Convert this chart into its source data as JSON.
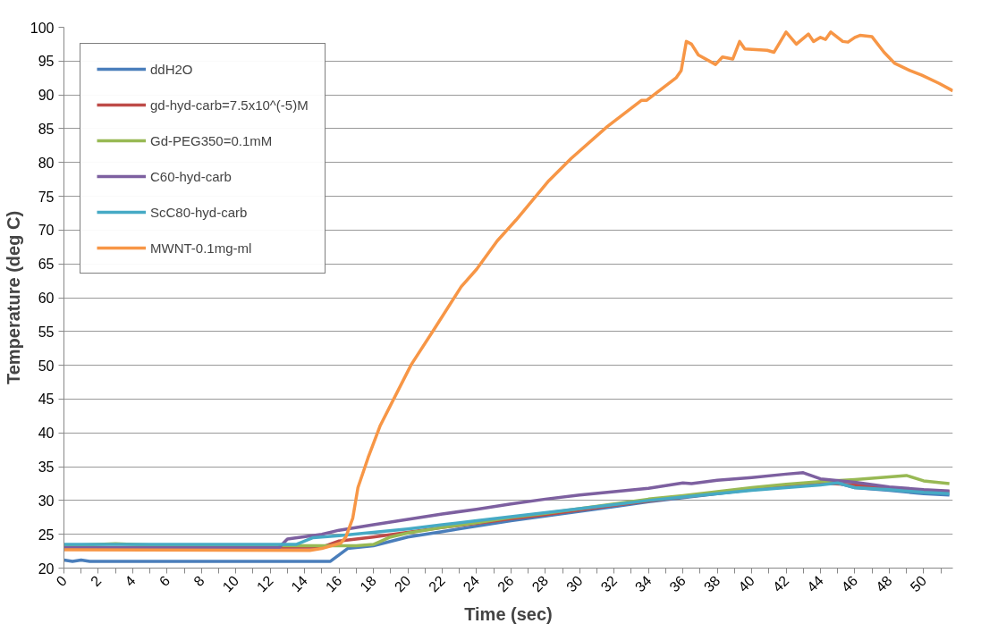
{
  "chart_data": {
    "type": "line",
    "xlabel": "Time (sec)",
    "ylabel": "Temperature (deg C)",
    "xlim": [
      0,
      51.7
    ],
    "ylim": [
      20,
      100
    ],
    "xticks": [
      0,
      {
        "value": 1,
        "label": null
      },
      2,
      {
        "value": 3,
        "label": null
      },
      4,
      {
        "value": 5,
        "label": null
      },
      6,
      {
        "value": 7,
        "label": null
      },
      8,
      {
        "value": 9,
        "label": null
      },
      10,
      {
        "value": 11,
        "label": null
      },
      12,
      {
        "value": 13,
        "label": null
      },
      14,
      {
        "value": 15,
        "label": null
      },
      16,
      {
        "value": 17,
        "label": null
      },
      18,
      {
        "value": 19,
        "label": null
      },
      20,
      {
        "value": 21,
        "label": null
      },
      22,
      {
        "value": 23,
        "label": null
      },
      24,
      {
        "value": 25,
        "label": null
      },
      26,
      {
        "value": 27,
        "label": null
      },
      28,
      {
        "value": 29,
        "label": null
      },
      30,
      {
        "value": 31,
        "label": null
      },
      32,
      {
        "value": 33,
        "label": null
      },
      34,
      {
        "value": 35,
        "label": null
      },
      36,
      {
        "value": 37,
        "label": null
      },
      38,
      {
        "value": 39,
        "label": null
      },
      40,
      {
        "value": 41,
        "label": null
      },
      42,
      {
        "value": 43,
        "label": null
      },
      44,
      {
        "value": 45,
        "label": null
      },
      46,
      {
        "value": 47,
        "label": null
      },
      48,
      {
        "value": 49,
        "label": null
      },
      50,
      {
        "value": 51,
        "label": null
      }
    ],
    "yticks": [
      20,
      25,
      30,
      35,
      40,
      45,
      50,
      55,
      60,
      65,
      70,
      75,
      80,
      85,
      90,
      95,
      100
    ],
    "grid": "y",
    "legend": "top left",
    "marker": "none",
    "line_style": "solid",
    "series": [
      {
        "name": "ddH2O",
        "color": "#4a7ebb",
        "x": [
          0,
          0.5,
          1,
          1.5,
          15.5,
          16.5,
          18,
          20,
          22,
          24,
          26,
          28,
          30,
          32,
          34,
          36,
          38,
          40,
          42,
          44,
          45,
          46,
          48,
          50,
          51.5
        ],
        "values": [
          21.2,
          21.0,
          21.2,
          21.0,
          21.0,
          22.9,
          23.3,
          24.6,
          25.4,
          26.2,
          27.0,
          27.7,
          28.4,
          29.1,
          29.8,
          30.4,
          31.0,
          31.6,
          32.0,
          32.5,
          32.6,
          31.9,
          31.5,
          31.0,
          30.8
        ]
      },
      {
        "name": "gd-hyd-carb=7.5x10^(-5)M",
        "color": "#be4b48",
        "x": [
          0,
          15,
          16,
          18,
          20,
          22,
          24,
          26,
          28,
          30,
          32,
          34,
          36,
          40,
          42,
          44,
          46,
          48,
          50,
          51.5
        ],
        "values": [
          23.0,
          23.1,
          24.0,
          24.6,
          25.3,
          26.0,
          26.6,
          27.3,
          27.9,
          28.6,
          29.3,
          29.9,
          30.5,
          31.6,
          32.1,
          32.6,
          32.3,
          31.8,
          31.5,
          31.3
        ]
      },
      {
        "name": "Gd-PEG350=0.1mM",
        "color": "#98b954",
        "x": [
          0,
          3,
          5,
          15,
          17,
          18,
          19,
          20,
          22,
          24,
          26,
          28,
          30,
          32,
          34,
          36,
          38,
          40,
          42,
          44,
          46,
          48,
          49,
          50,
          51.5
        ],
        "values": [
          23.3,
          23.6,
          23.4,
          23.3,
          23.3,
          23.5,
          24.6,
          25.2,
          26.0,
          26.7,
          27.5,
          28.1,
          28.8,
          29.5,
          30.2,
          30.7,
          31.3,
          31.9,
          32.4,
          32.8,
          33.1,
          33.5,
          33.7,
          32.9,
          32.5
        ]
      },
      {
        "name": "C60-hyd-carb",
        "color": "#7d60a0",
        "x": [
          0,
          12.5,
          13,
          15,
          16,
          18,
          20,
          22,
          24,
          26,
          28,
          30,
          32,
          34,
          35,
          36,
          36.5,
          38,
          40,
          42,
          43,
          44,
          46,
          48,
          50,
          51.5
        ],
        "values": [
          23.0,
          23.0,
          24.3,
          25.0,
          25.6,
          26.4,
          27.2,
          28.0,
          28.7,
          29.5,
          30.2,
          30.8,
          31.3,
          31.8,
          32.2,
          32.6,
          32.5,
          33.0,
          33.4,
          33.9,
          34.1,
          33.2,
          32.7,
          32.0,
          31.6,
          31.4
        ]
      },
      {
        "name": "ScC80-hyd-carb",
        "color": "#46aac5",
        "x": [
          0,
          13.5,
          14.5,
          16,
          18,
          20,
          22,
          24,
          26,
          28,
          30,
          32,
          34,
          36,
          38,
          40,
          42,
          44,
          45,
          46,
          48,
          50,
          51.5
        ],
        "values": [
          23.5,
          23.5,
          24.5,
          24.8,
          25.3,
          25.8,
          26.4,
          27.0,
          27.6,
          28.2,
          28.8,
          29.4,
          30.0,
          30.5,
          31.0,
          31.5,
          31.9,
          32.3,
          32.6,
          31.9,
          31.6,
          31.2,
          31.0
        ]
      },
      {
        "name": "MWNT-0.1mg-ml",
        "color": "#f79646",
        "x": [
          0,
          14.3,
          15.0,
          16.1,
          16.4,
          16.8,
          17.1,
          17.7,
          18.4,
          19.3,
          20.2,
          21.5,
          23.1,
          24.0,
          25.2,
          26.3,
          28.2,
          29.5,
          31.6,
          33.6,
          33.9,
          35.6,
          35.9,
          36.2,
          36.5,
          36.9,
          37.9,
          38.3,
          38.9,
          39.3,
          39.6,
          40.9,
          41.3,
          42.0,
          42.6,
          43.3,
          43.6,
          44.0,
          44.3,
          44.6,
          45.3,
          45.6,
          46.0,
          46.3,
          47.0,
          47.7,
          48.3,
          49.2,
          49.9,
          50.9,
          51.7
        ],
        "values": [
          22.7,
          22.6,
          22.9,
          23.7,
          24.6,
          27.4,
          31.9,
          36.4,
          41.1,
          45.6,
          50.1,
          55.2,
          61.6,
          64.2,
          68.4,
          71.5,
          77.3,
          80.6,
          85.3,
          89.2,
          89.2,
          92.5,
          93.6,
          97.9,
          97.5,
          95.9,
          94.5,
          95.6,
          95.3,
          97.9,
          96.8,
          96.6,
          96.3,
          99.3,
          97.5,
          99.0,
          97.9,
          98.5,
          98.2,
          99.3,
          97.9,
          97.8,
          98.5,
          98.8,
          98.6,
          96.3,
          94.7,
          93.6,
          92.9,
          91.7,
          90.6
        ]
      }
    ]
  }
}
